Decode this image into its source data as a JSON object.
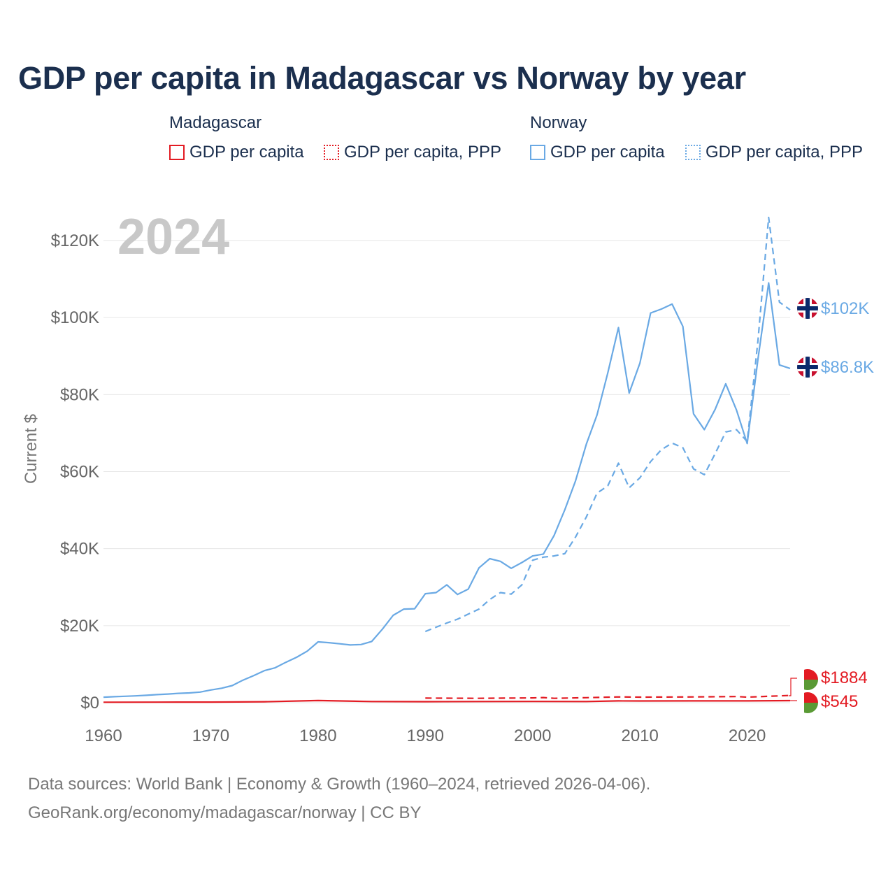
{
  "title": "GDP per capita in Madagascar vs Norway by year",
  "legend": {
    "groups": [
      {
        "country": "Madagascar",
        "items": [
          "GDP per capita",
          "GDP per capita, PPP"
        ]
      },
      {
        "country": "Norway",
        "items": [
          "GDP per capita",
          "GDP per capita, PPP"
        ]
      }
    ]
  },
  "colors": {
    "madagascar": "#e31b23",
    "norway": "#6aa9e4",
    "text": "#1b2f4e",
    "axis": "#666666",
    "year_watermark": "#c8c8c8"
  },
  "footer": {
    "line1": "Data sources: World Bank | Economy & Growth (1960–2024, retrieved 2026-04-06).",
    "line2": "GeoRank.org/economy/madagascar/norway | CC BY"
  },
  "chart_data": {
    "type": "line",
    "title": "GDP per capita in Madagascar vs Norway by year",
    "year_label": "2024",
    "ylabel": "Current $",
    "xlabel": "",
    "xlim": [
      1960,
      2024
    ],
    "ylim": [
      0,
      125000
    ],
    "x_ticks": [
      "1960",
      "1970",
      "1980",
      "1990",
      "2000",
      "2010",
      "2020"
    ],
    "y_ticks": [
      "$0",
      "$20K",
      "$40K",
      "$60K",
      "$80K",
      "$100K",
      "$120K"
    ],
    "end_labels": {
      "norway_ppp": "$102K",
      "norway_gdp": "$86.8K",
      "madagascar_ppp": "$1884",
      "madagascar_gdp": "$545"
    },
    "series": [
      {
        "name": "Norway GDP per capita",
        "country": "Norway",
        "style": "solid",
        "x": [
          1960,
          1961,
          1962,
          1963,
          1964,
          1965,
          1966,
          1967,
          1968,
          1969,
          1970,
          1971,
          1972,
          1973,
          1974,
          1975,
          1976,
          1977,
          1978,
          1979,
          1980,
          1981,
          1982,
          1983,
          1984,
          1985,
          1986,
          1987,
          1988,
          1989,
          1990,
          1991,
          1992,
          1993,
          1994,
          1995,
          1996,
          1997,
          1998,
          1999,
          2000,
          2001,
          2002,
          2003,
          2004,
          2005,
          2006,
          2007,
          2008,
          2009,
          2010,
          2011,
          2012,
          2013,
          2014,
          2015,
          2016,
          2017,
          2018,
          2019,
          2020,
          2021,
          2022,
          2023,
          2024
        ],
        "values": [
          1440,
          1560,
          1670,
          1780,
          1920,
          2100,
          2260,
          2440,
          2550,
          2760,
          3300,
          3750,
          4440,
          5870,
          7050,
          8340,
          9080,
          10500,
          11800,
          13400,
          15800,
          15600,
          15300,
          15000,
          15100,
          15900,
          19100,
          22700,
          24300,
          24400,
          28300,
          28600,
          30600,
          28100,
          29500,
          35000,
          37400,
          36700,
          34900,
          36400,
          38100,
          38600,
          43400,
          50100,
          57600,
          67100,
          74700,
          85600,
          97400,
          80400,
          88200,
          101200,
          102200,
          103500,
          97700,
          75000,
          70900,
          76100,
          82800,
          76000,
          67300,
          89200,
          109000,
          87700,
          86800
        ]
      },
      {
        "name": "Norway GDP per capita, PPP",
        "country": "Norway",
        "style": "dashed",
        "x": [
          1990,
          1991,
          1992,
          1993,
          1994,
          1995,
          1996,
          1997,
          1998,
          1999,
          2000,
          2001,
          2002,
          2003,
          2004,
          2005,
          2006,
          2007,
          2008,
          2009,
          2010,
          2011,
          2012,
          2013,
          2014,
          2015,
          2016,
          2017,
          2018,
          2019,
          2020,
          2021,
          2022,
          2023,
          2024
        ],
        "values": [
          18500,
          19600,
          20700,
          21700,
          23000,
          24300,
          26800,
          28600,
          28200,
          30600,
          37000,
          37800,
          38100,
          38700,
          43000,
          48200,
          54400,
          56300,
          62200,
          55800,
          58400,
          62600,
          65700,
          67400,
          66200,
          60700,
          59200,
          64600,
          70300,
          70900,
          67800,
          94000,
          126000,
          104000,
          102000
        ]
      },
      {
        "name": "Madagascar GDP per capita",
        "country": "Madagascar",
        "style": "solid",
        "x": [
          1960,
          1965,
          1970,
          1975,
          1980,
          1985,
          1990,
          1995,
          2000,
          2005,
          2008,
          2010,
          2015,
          2020,
          2024
        ],
        "values": [
          130,
          150,
          160,
          260,
          570,
          300,
          280,
          300,
          320,
          310,
          480,
          460,
          470,
          470,
          545
        ]
      },
      {
        "name": "Madagascar GDP per capita, PPP",
        "country": "Madagascar",
        "style": "dashed",
        "x": [
          1990,
          1995,
          2000,
          2001,
          2002,
          2005,
          2008,
          2010,
          2015,
          2019,
          2020,
          2024
        ],
        "values": [
          1200,
          1150,
          1250,
          1350,
          1150,
          1300,
          1500,
          1450,
          1500,
          1600,
          1450,
          1884
        ]
      }
    ]
  }
}
